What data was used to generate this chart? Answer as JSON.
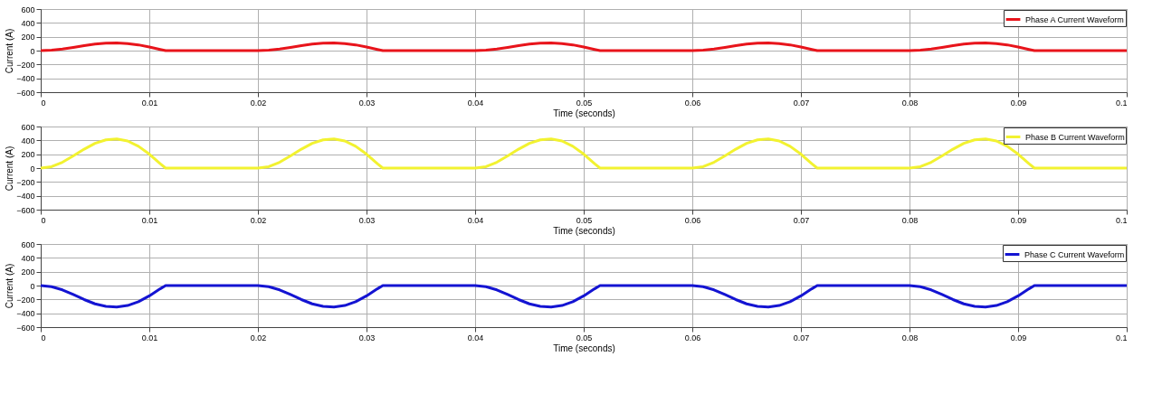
{
  "chart_data": [
    {
      "type": "line",
      "xlabel": "Time (seconds)",
      "ylabel": "Current (A)",
      "legend": "top right",
      "grid": true,
      "marker": "none",
      "line_style": "solid",
      "x": [
        0,
        0.001,
        0.002,
        0.003,
        0.004,
        0.005,
        0.006,
        0.007,
        0.008,
        0.009,
        0.01,
        0.011,
        0.0115,
        0.02,
        0.021,
        0.022,
        0.023,
        0.024,
        0.025,
        0.026,
        0.027,
        0.028,
        0.029,
        0.03,
        0.031,
        0.0315,
        0.04,
        0.041,
        0.042,
        0.043,
        0.044,
        0.045,
        0.046,
        0.047,
        0.048,
        0.049,
        0.05,
        0.051,
        0.0515,
        0.06,
        0.061,
        0.062,
        0.063,
        0.064,
        0.065,
        0.066,
        0.067,
        0.068,
        0.069,
        0.07,
        0.071,
        0.0715,
        0.08,
        0.081,
        0.082,
        0.083,
        0.084,
        0.085,
        0.086,
        0.087,
        0.088,
        0.089,
        0.09,
        0.091,
        0.0915,
        0.1
      ],
      "series": [
        {
          "name": "Phase A Current Waveform",
          "color": "#e8141b",
          "values": [
            0,
            6,
            22,
            46,
            72,
            94,
            107,
            110,
            102,
            83,
            53,
            17,
            0,
            0,
            6,
            22,
            46,
            72,
            94,
            107,
            110,
            102,
            83,
            53,
            17,
            0,
            0,
            6,
            22,
            46,
            72,
            94,
            107,
            110,
            102,
            83,
            53,
            17,
            0,
            0,
            6,
            22,
            46,
            72,
            94,
            107,
            110,
            102,
            83,
            53,
            17,
            0,
            0,
            6,
            22,
            46,
            72,
            94,
            107,
            110,
            102,
            83,
            53,
            17,
            0,
            0
          ]
        }
      ],
      "xlim": [
        0,
        0.1
      ],
      "xticks": [
        0,
        0.01,
        0.02,
        0.03,
        0.04,
        0.05,
        0.06,
        0.07,
        0.08,
        0.09,
        0.1
      ],
      "ylim": [
        -600,
        600
      ],
      "yticks": [
        -600,
        -400,
        -200,
        0,
        200,
        400,
        600
      ]
    },
    {
      "type": "line",
      "xlabel": "Time (seconds)",
      "ylabel": "Current (A)",
      "legend": "top right",
      "grid": true,
      "marker": "none",
      "line_style": "solid",
      "x": [
        0,
        0.001,
        0.002,
        0.003,
        0.004,
        0.005,
        0.006,
        0.007,
        0.008,
        0.009,
        0.01,
        0.011,
        0.0115,
        0.02,
        0.021,
        0.022,
        0.023,
        0.024,
        0.025,
        0.026,
        0.027,
        0.028,
        0.029,
        0.03,
        0.031,
        0.0315,
        0.04,
        0.041,
        0.042,
        0.043,
        0.044,
        0.045,
        0.046,
        0.047,
        0.048,
        0.049,
        0.05,
        0.051,
        0.0515,
        0.06,
        0.061,
        0.062,
        0.063,
        0.064,
        0.065,
        0.066,
        0.067,
        0.068,
        0.069,
        0.07,
        0.071,
        0.0715,
        0.08,
        0.081,
        0.082,
        0.083,
        0.084,
        0.085,
        0.086,
        0.087,
        0.088,
        0.089,
        0.09,
        0.091,
        0.0915,
        0.1
      ],
      "series": [
        {
          "name": "Phase B Current Waveform",
          "color": "#f2f230",
          "values": [
            0,
            21,
            84,
            176,
            273,
            357,
            407,
            420,
            391,
            315,
            202,
            63,
            0,
            0,
            21,
            84,
            176,
            273,
            357,
            407,
            420,
            391,
            315,
            202,
            63,
            0,
            0,
            21,
            84,
            176,
            273,
            357,
            407,
            420,
            391,
            315,
            202,
            63,
            0,
            0,
            21,
            84,
            176,
            273,
            357,
            407,
            420,
            391,
            315,
            202,
            63,
            0,
            0,
            21,
            84,
            176,
            273,
            357,
            407,
            420,
            391,
            315,
            202,
            63,
            0,
            0
          ]
        }
      ],
      "xlim": [
        0,
        0.1
      ],
      "xticks": [
        0,
        0.01,
        0.02,
        0.03,
        0.04,
        0.05,
        0.06,
        0.07,
        0.08,
        0.09,
        0.1
      ],
      "ylim": [
        -600,
        600
      ],
      "yticks": [
        -600,
        -400,
        -200,
        0,
        200,
        400,
        600
      ]
    },
    {
      "type": "line",
      "xlabel": "Time (seconds)",
      "ylabel": "Current (A)",
      "legend": "top right",
      "grid": true,
      "marker": "none",
      "line_style": "solid",
      "x": [
        0,
        0.001,
        0.002,
        0.003,
        0.004,
        0.005,
        0.006,
        0.007,
        0.008,
        0.009,
        0.01,
        0.011,
        0.0115,
        0.02,
        0.021,
        0.022,
        0.023,
        0.024,
        0.025,
        0.026,
        0.027,
        0.028,
        0.029,
        0.03,
        0.031,
        0.0315,
        0.04,
        0.041,
        0.042,
        0.043,
        0.044,
        0.045,
        0.046,
        0.047,
        0.048,
        0.049,
        0.05,
        0.051,
        0.0515,
        0.06,
        0.061,
        0.062,
        0.063,
        0.064,
        0.065,
        0.066,
        0.067,
        0.068,
        0.069,
        0.07,
        0.071,
        0.0715,
        0.08,
        0.081,
        0.082,
        0.083,
        0.084,
        0.085,
        0.086,
        0.087,
        0.088,
        0.089,
        0.09,
        0.091,
        0.0915,
        0.1
      ],
      "series": [
        {
          "name": "Phase C Current Waveform",
          "color": "#1414d2",
          "values": [
            0,
            -16,
            -62,
            -130,
            -202,
            -264,
            -301,
            -310,
            -288,
            -233,
            -149,
            -47,
            0,
            0,
            -16,
            -62,
            -130,
            -202,
            -264,
            -301,
            -310,
            -288,
            -233,
            -149,
            -47,
            0,
            0,
            -16,
            -62,
            -130,
            -202,
            -264,
            -301,
            -310,
            -288,
            -233,
            -149,
            -47,
            0,
            0,
            -16,
            -62,
            -130,
            -202,
            -264,
            -301,
            -310,
            -288,
            -233,
            -149,
            -47,
            0,
            0,
            -16,
            -62,
            -130,
            -202,
            -264,
            -301,
            -310,
            -288,
            -233,
            -149,
            -47,
            0,
            0
          ]
        }
      ],
      "xlim": [
        0,
        0.1
      ],
      "xticks": [
        0,
        0.01,
        0.02,
        0.03,
        0.04,
        0.05,
        0.06,
        0.07,
        0.08,
        0.09,
        0.1
      ],
      "ylim": [
        -600,
        600
      ],
      "yticks": [
        -600,
        -400,
        -200,
        0,
        200,
        400,
        600
      ]
    }
  ]
}
